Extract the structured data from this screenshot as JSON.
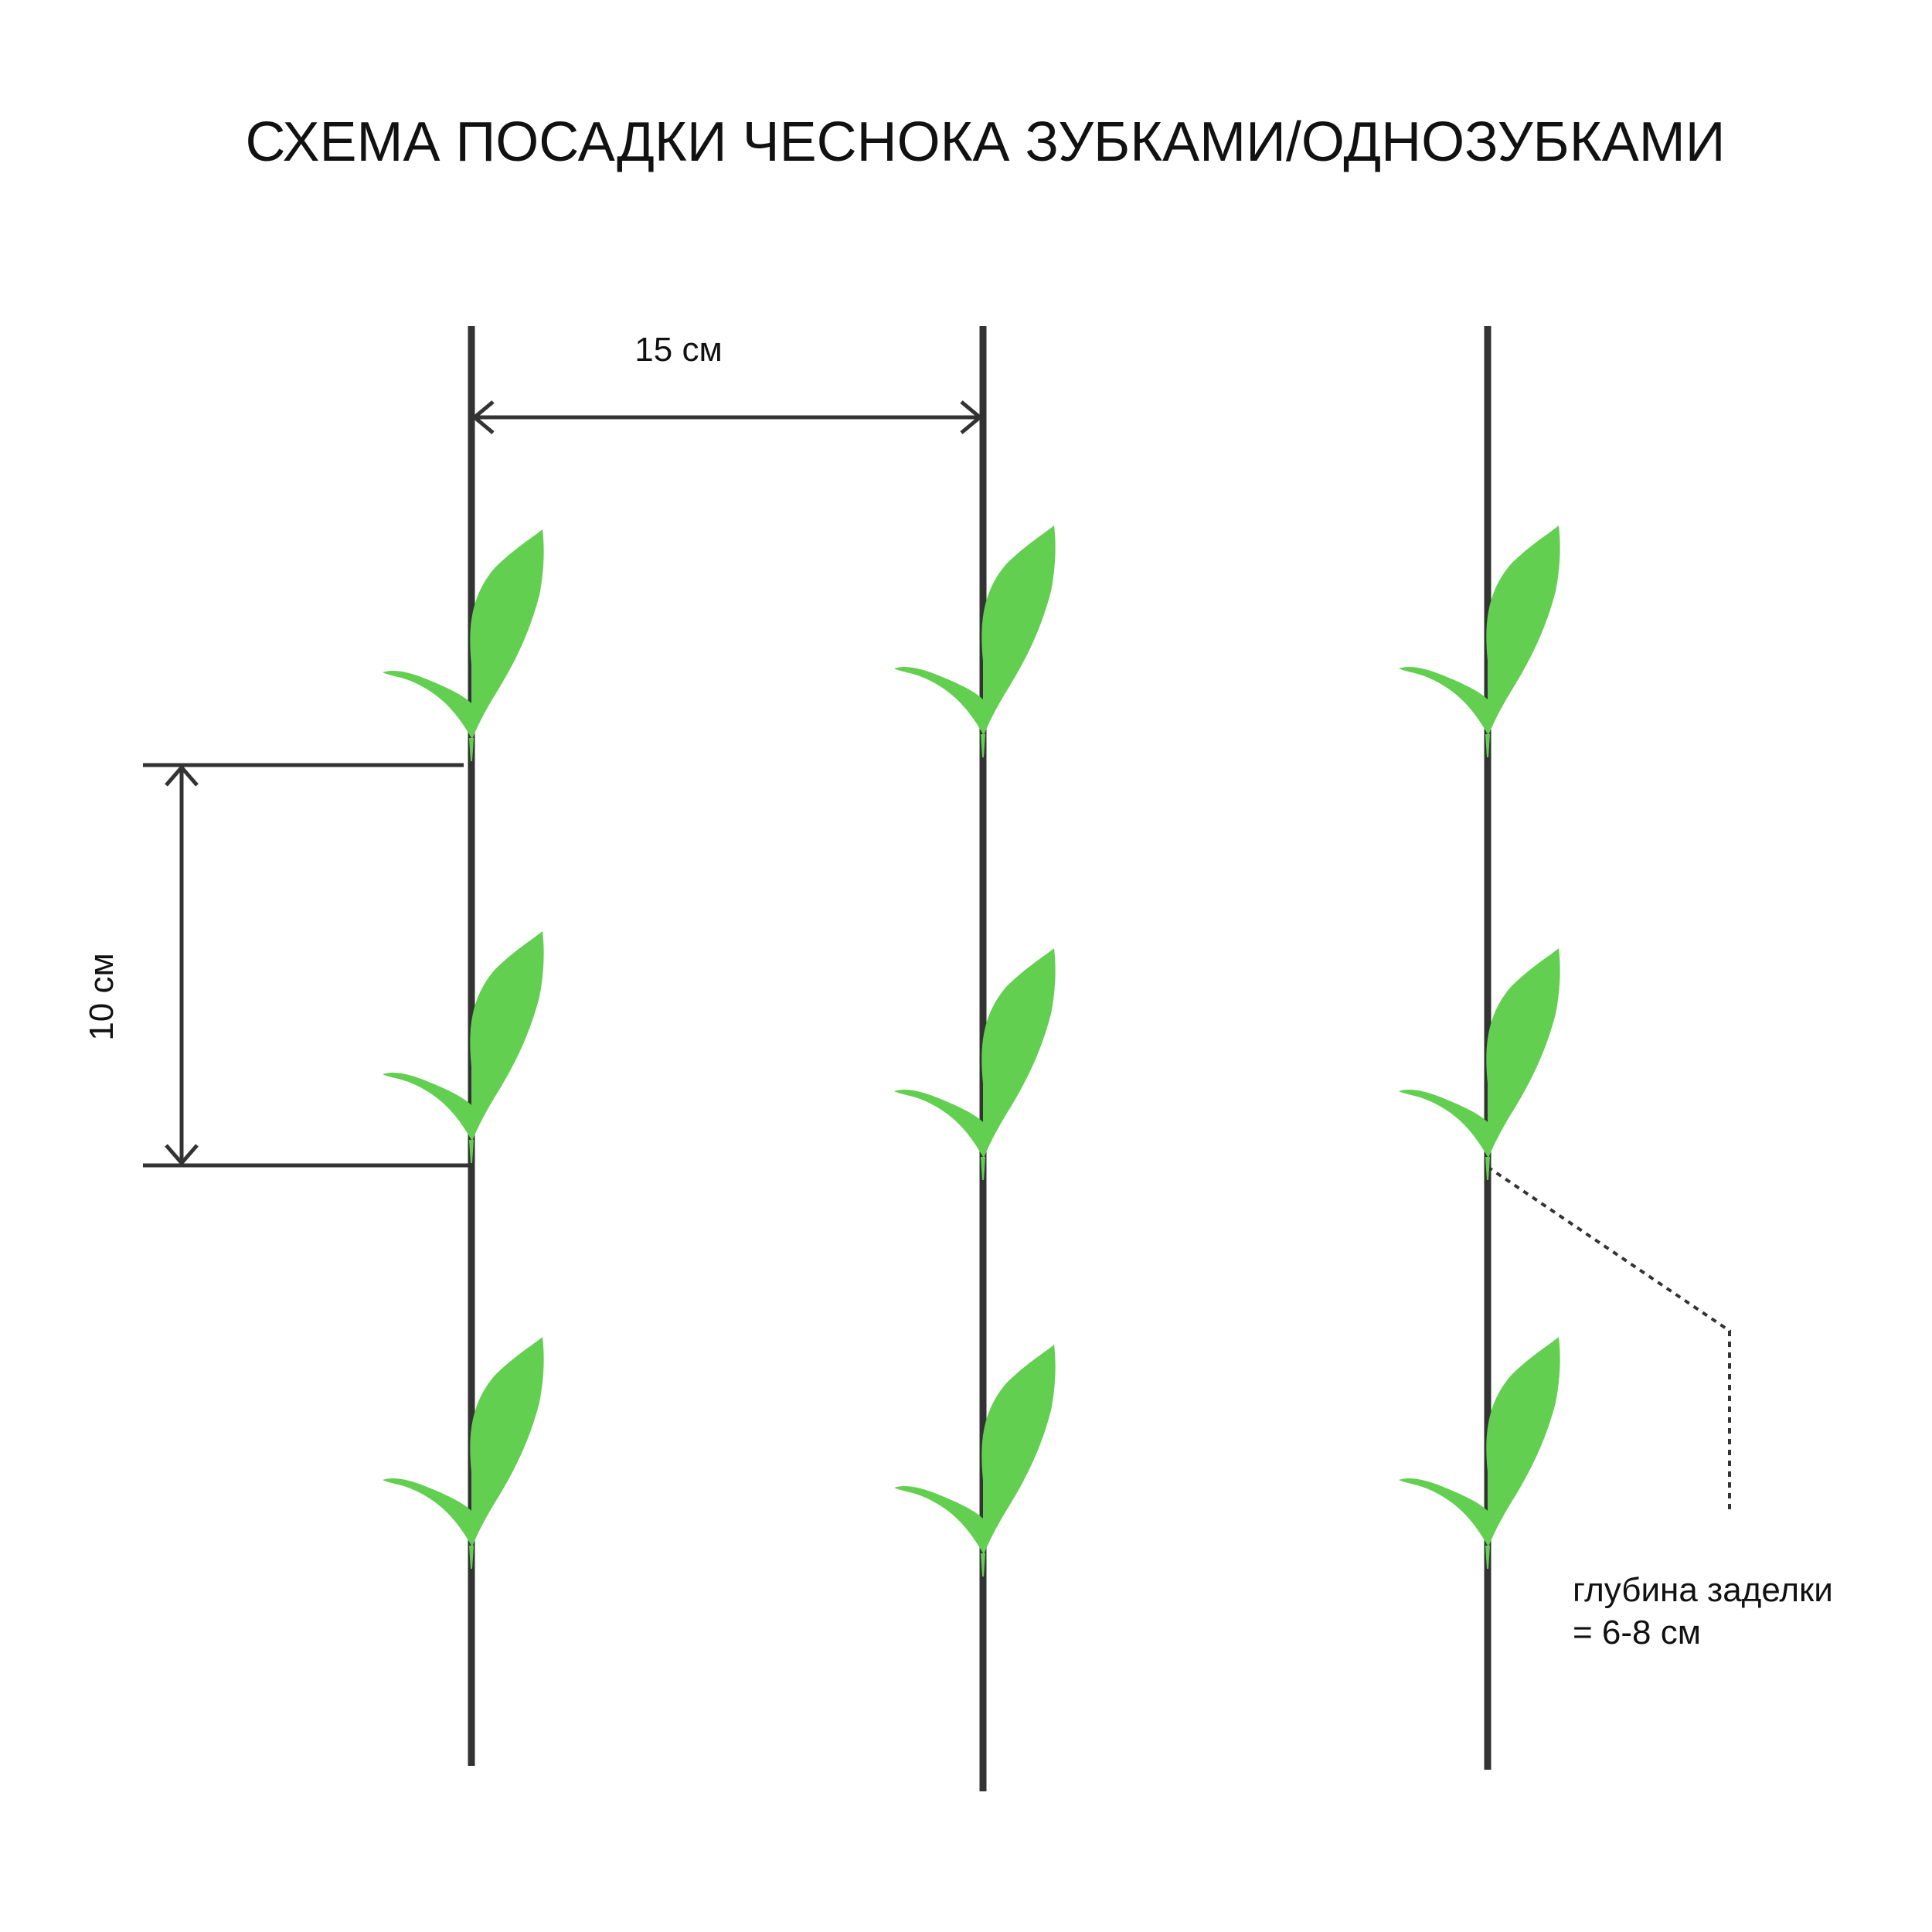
{
  "title": "СХЕМА ПОСАДКИ ЧЕСНОКА ЗУБКАМИ/ОДНОЗУБКАМИ",
  "row_spacing_label": "15 см",
  "plant_spacing_label": "10 см",
  "depth_label": {
    "line1": "глубина заделки",
    "line2": "= 6-8 см"
  },
  "colors": {
    "line": "#333333",
    "sprout": "#62cf50",
    "background": "#ffffff"
  },
  "icons": {
    "sprout": "sprout-icon"
  }
}
